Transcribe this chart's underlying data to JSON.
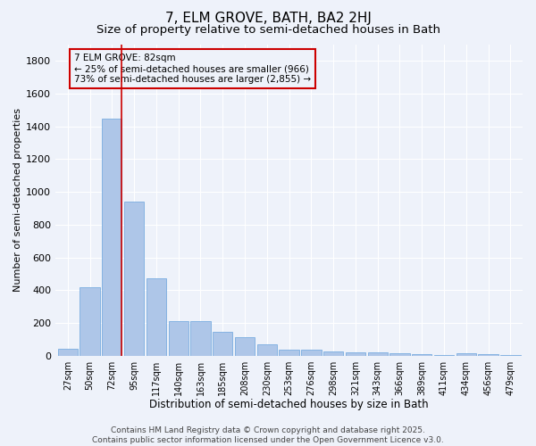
{
  "title": "7, ELM GROVE, BATH, BA2 2HJ",
  "subtitle": "Size of property relative to semi-detached houses in Bath",
  "xlabel": "Distribution of semi-detached houses by size in Bath",
  "ylabel": "Number of semi-detached properties",
  "categories": [
    "27sqm",
    "50sqm",
    "72sqm",
    "95sqm",
    "117sqm",
    "140sqm",
    "163sqm",
    "185sqm",
    "208sqm",
    "230sqm",
    "253sqm",
    "276sqm",
    "298sqm",
    "321sqm",
    "343sqm",
    "366sqm",
    "389sqm",
    "411sqm",
    "434sqm",
    "456sqm",
    "479sqm"
  ],
  "values": [
    40,
    420,
    1450,
    940,
    470,
    210,
    210,
    145,
    110,
    70,
    35,
    35,
    25,
    20,
    18,
    12,
    8,
    5,
    15,
    8,
    5
  ],
  "bar_color": "#aec6e8",
  "bar_edge_color": "#7aade0",
  "vline_x": 2.42,
  "vline_color": "#cc0000",
  "annotation_text": "7 ELM GROVE: 82sqm\n← 25% of semi-detached houses are smaller (966)\n73% of semi-detached houses are larger (2,855) →",
  "annotation_box_color": "#cc0000",
  "annotation_text_color": "#000000",
  "ylim": [
    0,
    1900
  ],
  "yticks": [
    0,
    200,
    400,
    600,
    800,
    1000,
    1200,
    1400,
    1600,
    1800
  ],
  "background_color": "#eef2fa",
  "grid_color": "#ffffff",
  "footer": "Contains HM Land Registry data © Crown copyright and database right 2025.\nContains public sector information licensed under the Open Government Licence v3.0.",
  "title_fontsize": 11,
  "subtitle_fontsize": 9.5,
  "xlabel_fontsize": 8.5,
  "ylabel_fontsize": 8,
  "annotation_fontsize": 7.5,
  "footer_fontsize": 6.5
}
